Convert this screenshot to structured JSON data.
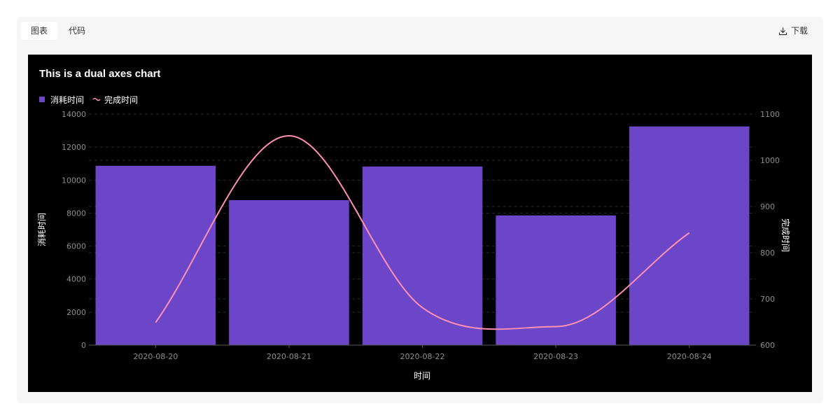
{
  "tabs": [
    {
      "label": "图表",
      "active": true
    },
    {
      "label": "代码",
      "active": false
    }
  ],
  "download": {
    "label": "下载",
    "icon": "download-icon"
  },
  "chart_data": {
    "type": "bar+line",
    "title": "This is a dual axes chart",
    "x": [
      "2020-08-20",
      "2020-08-21",
      "2020-08-22",
      "2020-08-23",
      "2020-08-24"
    ],
    "xlabel": "时间",
    "series": [
      {
        "name": "消耗时间",
        "type": "bar",
        "axis": "left",
        "color": "#6b46c9",
        "values": [
          10868,
          8786,
          10824,
          7860,
          13253
        ]
      },
      {
        "name": "完成时间",
        "type": "line",
        "axis": "right",
        "color": "#ff8fb3",
        "values": [
          649,
          1053,
          681,
          640,
          843
        ]
      }
    ],
    "yleft": {
      "label": "消耗时间",
      "min": 0,
      "max": 14000,
      "ticks": [
        "0",
        "2000",
        "4000",
        "6000",
        "8000",
        "10000",
        "12000",
        "14000"
      ]
    },
    "yright": {
      "label": "完成时间",
      "min": 600,
      "max": 1100,
      "ticks": [
        "600",
        "700",
        "800",
        "900",
        "1000",
        "1100"
      ]
    },
    "legend_position": "top-left",
    "grid": true
  }
}
